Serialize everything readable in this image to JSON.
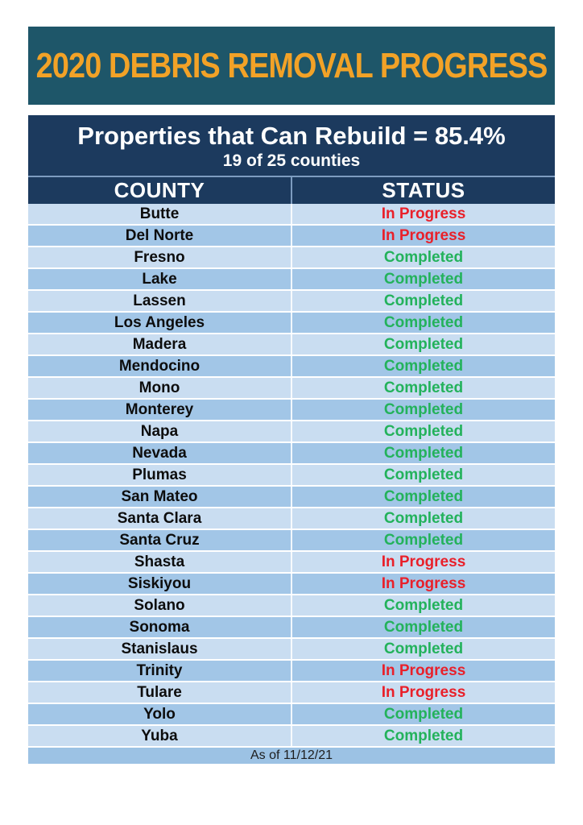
{
  "chart_data": {
    "type": "table",
    "title": "2020 DEBRIS REMOVAL PROGRESS",
    "summary_title": "Properties that Can Rebuild = 85.4%",
    "summary_note": "19 of 25 counties",
    "columns": [
      "COUNTY",
      "STATUS"
    ],
    "rows": [
      {
        "county": "Butte",
        "status": "In Progress"
      },
      {
        "county": "Del Norte",
        "status": "In Progress"
      },
      {
        "county": "Fresno",
        "status": "Completed"
      },
      {
        "county": "Lake",
        "status": "Completed"
      },
      {
        "county": "Lassen",
        "status": "Completed"
      },
      {
        "county": "Los Angeles",
        "status": "Completed"
      },
      {
        "county": "Madera",
        "status": "Completed"
      },
      {
        "county": "Mendocino",
        "status": "Completed"
      },
      {
        "county": "Mono",
        "status": "Completed"
      },
      {
        "county": "Monterey",
        "status": "Completed"
      },
      {
        "county": "Napa",
        "status": "Completed"
      },
      {
        "county": "Nevada",
        "status": "Completed"
      },
      {
        "county": "Plumas",
        "status": "Completed"
      },
      {
        "county": "San Mateo",
        "status": "Completed"
      },
      {
        "county": "Santa Clara",
        "status": "Completed"
      },
      {
        "county": "Santa Cruz",
        "status": "Completed"
      },
      {
        "county": "Shasta",
        "status": "In Progress"
      },
      {
        "county": "Siskiyou",
        "status": "In Progress"
      },
      {
        "county": "Solano",
        "status": "Completed"
      },
      {
        "county": "Sonoma",
        "status": "Completed"
      },
      {
        "county": "Stanislaus",
        "status": "Completed"
      },
      {
        "county": "Trinity",
        "status": "In Progress"
      },
      {
        "county": "Tulare",
        "status": "In Progress"
      },
      {
        "county": "Yolo",
        "status": "Completed"
      },
      {
        "county": "Yuba",
        "status": "Completed"
      }
    ],
    "counts": {
      "completed": 19,
      "in_progress": 6,
      "total": 25
    },
    "footer": "As of 11/12/21",
    "legend_position": "none",
    "grid": "row-separators"
  },
  "colors": {
    "banner_bg": "#1e5669",
    "banner_text": "#f2a227",
    "header_bg": "#1c3a5e",
    "header_text": "#ffffff",
    "row_light": "#c9ddf1",
    "row_dark": "#a2c6e7",
    "footer_bg": "#9cc2e4",
    "county_text": "#0d0d0d",
    "status_completed": "#23b25b",
    "status_in_progress": "#e9202a"
  }
}
